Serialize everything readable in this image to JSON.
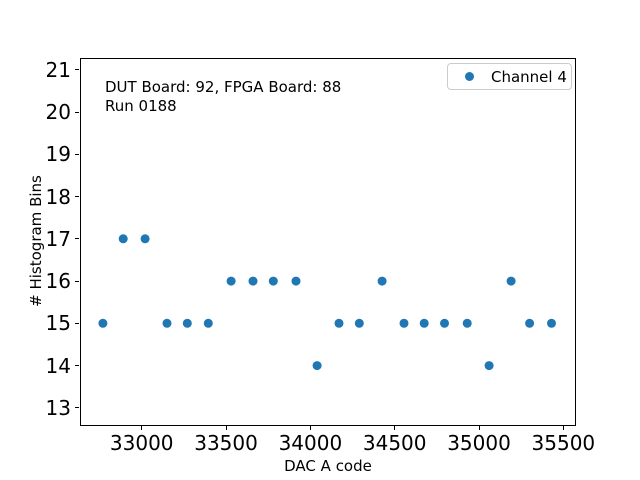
{
  "figure": {
    "background": "#ffffff"
  },
  "chart_data": {
    "type": "scatter",
    "title": "",
    "xlabel": "DAC A code",
    "ylabel": "# Histogram Bins",
    "xlim": [
      32634,
      35575
    ],
    "ylim": [
      12.57,
      21.28
    ],
    "x_ticks": [
      33000,
      33500,
      34000,
      34500,
      35000,
      35500
    ],
    "y_ticks": [
      13,
      14,
      15,
      16,
      17,
      18,
      19,
      20,
      21
    ],
    "grid": false,
    "legend": {
      "label": "Channel 4",
      "position": "upper right",
      "marker_color": "#1f77b4"
    },
    "annotation": {
      "line1": "DUT Board: 92, FPGA Board: 88",
      "line2": "Run 0188"
    },
    "series": [
      {
        "name": "Channel 4",
        "color": "#1f77b4",
        "marker": "circle",
        "marker_radius_px": 4.5,
        "points": [
          [
            32770,
            15
          ],
          [
            32890,
            17
          ],
          [
            33020,
            17
          ],
          [
            33150,
            15
          ],
          [
            33270,
            15
          ],
          [
            33395,
            15
          ],
          [
            33530,
            16
          ],
          [
            33660,
            16
          ],
          [
            33780,
            16
          ],
          [
            33915,
            16
          ],
          [
            34040,
            14
          ],
          [
            34170,
            15
          ],
          [
            34290,
            15
          ],
          [
            34425,
            16
          ],
          [
            34555,
            15
          ],
          [
            34675,
            15
          ],
          [
            34795,
            15
          ],
          [
            34930,
            15
          ],
          [
            35060,
            14
          ],
          [
            35190,
            16
          ],
          [
            35300,
            15
          ],
          [
            35430,
            15
          ]
        ]
      }
    ]
  }
}
